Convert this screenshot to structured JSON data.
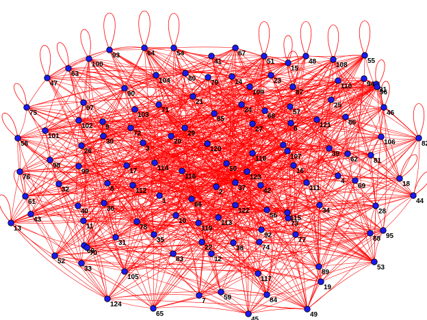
{
  "graph": {
    "colors": {
      "edge": "#ff0000",
      "node": "#1a1aee",
      "label": "#000000",
      "background": "#ffffff"
    },
    "nodes": [
      "1",
      "2",
      "3",
      "4",
      "5",
      "6",
      "7",
      "8",
      "9",
      "10",
      "11",
      "12",
      "13",
      "14",
      "15",
      "16",
      "17",
      "18",
      "19",
      "20",
      "21",
      "22",
      "23",
      "24",
      "25",
      "26",
      "27",
      "28",
      "29",
      "30",
      "31",
      "32",
      "33",
      "34",
      "35",
      "36",
      "37",
      "38",
      "39",
      "40",
      "41",
      "42",
      "43",
      "44",
      "45",
      "46",
      "47",
      "48",
      "49",
      "50",
      "51",
      "52",
      "53",
      "54",
      "55",
      "56",
      "57",
      "58",
      "59",
      "60",
      "61",
      "62",
      "63",
      "64",
      "65",
      "66",
      "67",
      "68",
      "69",
      "70",
      "71",
      "72",
      "73",
      "74",
      "75",
      "76",
      "77",
      "78",
      "79",
      "80",
      "81",
      "82",
      "83",
      "84",
      "85",
      "86",
      "87",
      "88",
      "89",
      "90",
      "91",
      "92",
      "93",
      "94",
      "95",
      "96",
      "97",
      "98",
      "99",
      "100",
      "101",
      "102",
      "103",
      "104",
      "105",
      "106",
      "107",
      "108",
      "109",
      "110",
      "111",
      "112",
      "113",
      "114",
      "115",
      "116",
      "117",
      "118",
      "119",
      "120",
      "121",
      "122",
      "123",
      "124"
    ],
    "self_loops": [
      "93",
      "64",
      "54",
      "87",
      "51",
      "15",
      "48",
      "108",
      "55",
      "47",
      "100",
      "63",
      "61",
      "75",
      "58",
      "78",
      "13",
      "44",
      "18",
      "82",
      "96",
      "46"
    ]
  }
}
